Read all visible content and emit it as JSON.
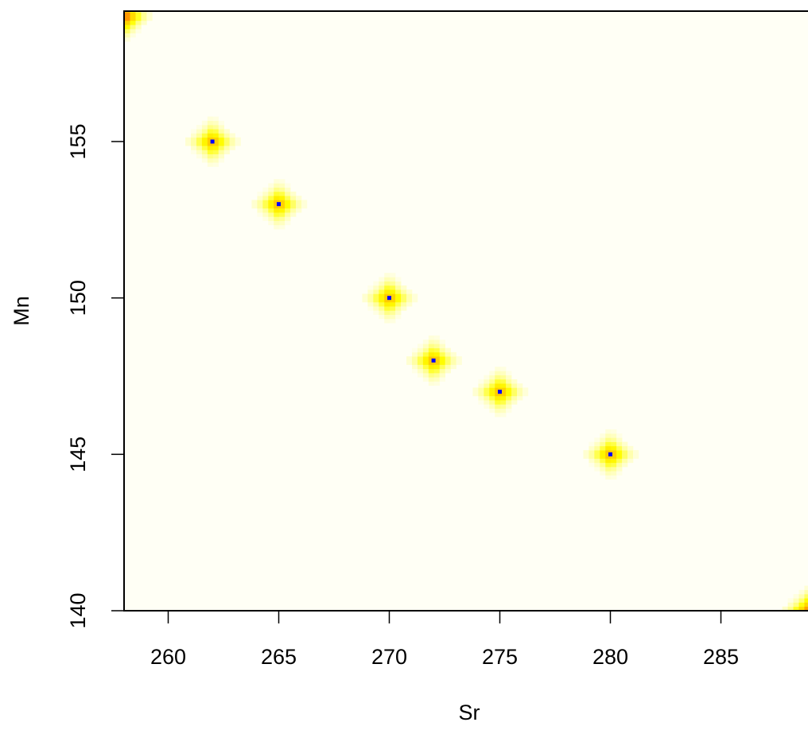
{
  "chart_data": {
    "type": "heatmap",
    "title": "",
    "xlabel": "Sr",
    "ylabel": "Mn",
    "xlim": [
      258,
      289
    ],
    "ylim": [
      140,
      159
    ],
    "x_ticks": [
      260,
      265,
      270,
      275,
      280,
      285
    ],
    "y_ticks": [
      140,
      145,
      150,
      155
    ],
    "x_tick_labels": [
      "260",
      "265",
      "270",
      "275",
      "280",
      "285"
    ],
    "y_tick_labels": [
      "140",
      "145",
      "150",
      "155"
    ],
    "colorscale": [
      "#fffff5",
      "#ffff99",
      "#ffff00",
      "#ffcc00",
      "#ff8800",
      "#ff0000"
    ],
    "marker_color": "#0000ff",
    "hotspots": [
      {
        "x": 262,
        "y": 155,
        "intensity": 0.75
      },
      {
        "x": 265,
        "y": 153,
        "intensity": 0.75
      },
      {
        "x": 270,
        "y": 150,
        "intensity": 0.75
      },
      {
        "x": 272,
        "y": 148,
        "intensity": 0.75
      },
      {
        "x": 275,
        "y": 147,
        "intensity": 0.75
      },
      {
        "x": 280,
        "y": 145,
        "intensity": 0.75
      },
      {
        "x": 258,
        "y": 159,
        "intensity": 1.0
      },
      {
        "x": 289,
        "y": 140,
        "intensity": 0.9
      }
    ],
    "points": [
      {
        "x": 262,
        "y": 155
      },
      {
        "x": 265,
        "y": 153
      },
      {
        "x": 270,
        "y": 150
      },
      {
        "x": 272,
        "y": 148
      },
      {
        "x": 275,
        "y": 147
      },
      {
        "x": 280,
        "y": 145
      }
    ],
    "grid": false,
    "legend": "none"
  }
}
